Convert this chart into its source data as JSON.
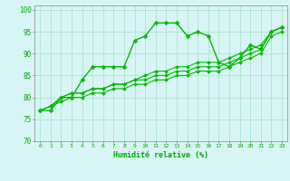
{
  "bg_color": "#d8f5f5",
  "grid_color": "#aaddcc",
  "line_color": "#00bb00",
  "marker_color": "#00bb00",
  "xlabel": "Humidité relative (%)",
  "xlabel_color": "#00aa00",
  "tick_color": "#00aa00",
  "ylim": [
    70,
    101
  ],
  "xlim": [
    -0.5,
    23.5
  ],
  "yticks": [
    70,
    75,
    80,
    85,
    90,
    95,
    100
  ],
  "xticks": [
    0,
    1,
    2,
    3,
    4,
    5,
    6,
    7,
    8,
    9,
    10,
    11,
    12,
    13,
    14,
    15,
    16,
    17,
    18,
    19,
    20,
    21,
    22,
    23
  ],
  "lines": [
    [
      77,
      77,
      80,
      80,
      84,
      87,
      87,
      87,
      87,
      93,
      94,
      97,
      97,
      97,
      94,
      95,
      94,
      88,
      87,
      89,
      92,
      91,
      95,
      96
    ],
    [
      77,
      78,
      80,
      81,
      81,
      82,
      82,
      83,
      83,
      84,
      85,
      86,
      86,
      87,
      87,
      88,
      88,
      88,
      89,
      90,
      91,
      92,
      95,
      96
    ],
    [
      77,
      78,
      80,
      81,
      81,
      82,
      82,
      83,
      83,
      84,
      84,
      85,
      85,
      86,
      86,
      87,
      87,
      87,
      88,
      89,
      90,
      91,
      95,
      96
    ],
    [
      77,
      78,
      79,
      80,
      80,
      81,
      81,
      82,
      82,
      83,
      83,
      84,
      84,
      85,
      85,
      86,
      86,
      86,
      87,
      88,
      89,
      90,
      94,
      95
    ]
  ],
  "figsize": [
    3.2,
    2.0
  ],
  "dpi": 100
}
